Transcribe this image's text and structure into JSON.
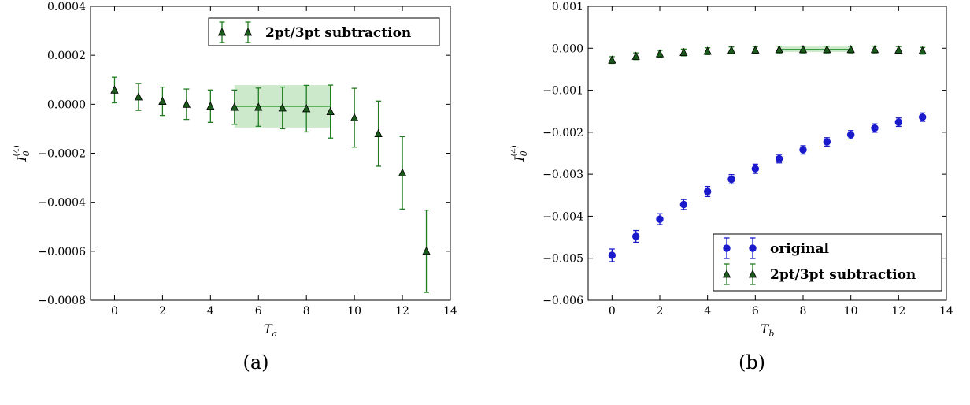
{
  "chart_data": [
    {
      "type": "scatter",
      "caption": "(a)",
      "xlabel": "T",
      "xlabel_sub": "a",
      "ylabel": "I",
      "ylabel_sub": "0",
      "ylabel_sup": "(4)",
      "xlim": [
        -1,
        14
      ],
      "ylim": [
        -0.0008,
        0.0004
      ],
      "xticks": [
        0,
        2,
        4,
        6,
        8,
        10,
        12,
        14
      ],
      "yticks": [
        -0.0008,
        -0.0006,
        -0.0004,
        -0.0002,
        0.0,
        0.0002,
        0.0004
      ],
      "yticklabels": [
        "−0.0008",
        "−0.0006",
        "−0.0004",
        "−0.0002",
        "0.0000",
        "0.0002",
        "0.0004"
      ],
      "legend_position": "top-right",
      "series": [
        {
          "name": "2pt/3pt subtraction",
          "marker": "triangle",
          "color": "#1e7b1e",
          "fill": "#1a5a1a",
          "x": [
            0,
            1,
            2,
            3,
            4,
            5,
            6,
            7,
            8,
            9,
            10,
            11,
            12,
            13
          ],
          "y": [
            5.8e-05,
            3e-05,
            1.2e-05,
            0.0,
            -8e-06,
            -1.2e-05,
            -1.2e-05,
            -1.5e-05,
            -1.8e-05,
            -3e-05,
            -5.5e-05,
            -0.00012,
            -0.00028,
            -0.0006
          ],
          "err": [
            5.2e-05,
            5.5e-05,
            5.8e-05,
            6.2e-05,
            6.6e-05,
            7e-05,
            7.8e-05,
            8.5e-05,
            9.5e-05,
            0.000108,
            0.00012,
            0.000133,
            0.000148,
            0.000168
          ]
        }
      ],
      "band": {
        "x": [
          5,
          9
        ],
        "center": -8.5e-06,
        "low": -9.5e-05,
        "high": 7.8e-05,
        "color": "#8fcf8f"
      }
    },
    {
      "type": "scatter",
      "caption": "(b)",
      "xlabel": "T",
      "xlabel_sub": "b",
      "ylabel": "I",
      "ylabel_sub": "0",
      "ylabel_sup": "(4)",
      "xlim": [
        -1,
        14
      ],
      "ylim": [
        -0.006,
        0.001
      ],
      "xticks": [
        0,
        2,
        4,
        6,
        8,
        10,
        12,
        14
      ],
      "yticks": [
        -0.006,
        -0.005,
        -0.004,
        -0.003,
        -0.002,
        -0.001,
        0.0,
        0.001
      ],
      "yticklabels": [
        "−0.006",
        "−0.005",
        "−0.004",
        "−0.003",
        "−0.002",
        "−0.001",
        "0.000",
        "0.001"
      ],
      "legend_position": "bottom-right",
      "series": [
        {
          "name": "original",
          "marker": "circle",
          "color": "#1a1acc",
          "fill": "#1a1acc",
          "x": [
            0,
            1,
            2,
            3,
            4,
            5,
            6,
            7,
            8,
            9,
            10,
            11,
            12,
            13
          ],
          "y": [
            -0.00493,
            -0.00448,
            -0.00407,
            -0.00372,
            -0.00341,
            -0.00312,
            -0.00287,
            -0.00263,
            -0.00242,
            -0.00223,
            -0.00206,
            -0.0019,
            -0.00176,
            -0.00164
          ],
          "err": [
            0.00015,
            0.00014,
            0.00013,
            0.00012,
            0.00012,
            0.00011,
            0.00011,
            0.0001,
            0.0001,
            0.0001,
            0.0001,
            0.0001,
            0.0001,
            0.0001
          ]
        },
        {
          "name": "2pt/3pt subtraction",
          "marker": "triangle",
          "color": "#1e7b1e",
          "fill": "#1a5a1a",
          "x": [
            0,
            1,
            2,
            3,
            4,
            5,
            6,
            7,
            8,
            9,
            10,
            11,
            12,
            13
          ],
          "y": [
            -0.00028,
            -0.00019,
            -0.00013,
            -0.0001,
            -7e-05,
            -5e-05,
            -4e-05,
            -3e-05,
            -3e-05,
            -3e-05,
            -3e-05,
            -3e-05,
            -4e-05,
            -6e-05
          ],
          "err": [
            8e-05,
            8e-05,
            8e-05,
            8e-05,
            8e-05,
            8e-05,
            8e-05,
            8e-05,
            8e-05,
            8e-05,
            8e-05,
            8e-05,
            8e-05,
            8e-05
          ]
        }
      ],
      "band": {
        "x": [
          7,
          10
        ],
        "center": -3e-05,
        "low": -9e-05,
        "high": 4e-05,
        "color": "#8fcf8f"
      }
    }
  ]
}
